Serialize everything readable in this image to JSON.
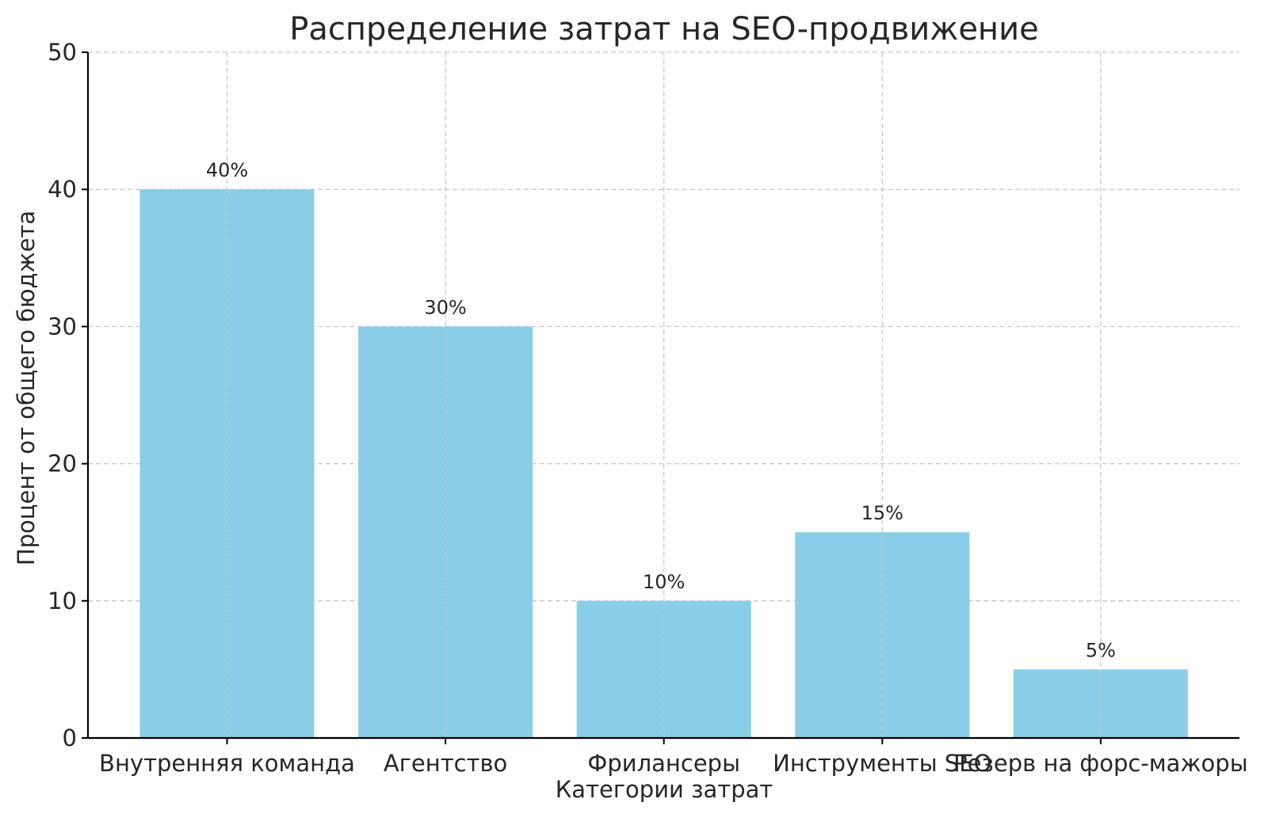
{
  "chart_data": {
    "type": "bar",
    "title": "Распределение затрат на SEO-продвижение",
    "xlabel": "Категории затрат",
    "ylabel": "Процент от общего бюджета",
    "categories": [
      "Внутренняя команда",
      "Агентство",
      "Фрилансеры",
      "Инструменты SEO",
      "Резерв на форс-мажоры"
    ],
    "values": [
      40,
      30,
      10,
      15,
      5
    ],
    "data_labels": [
      "40%",
      "30%",
      "10%",
      "15%",
      "5%"
    ],
    "ylim": [
      0,
      50
    ],
    "yticks": [
      "0",
      "10",
      "20",
      "30",
      "40",
      "50"
    ],
    "grid": true,
    "bar_color": "#89CDE8"
  }
}
